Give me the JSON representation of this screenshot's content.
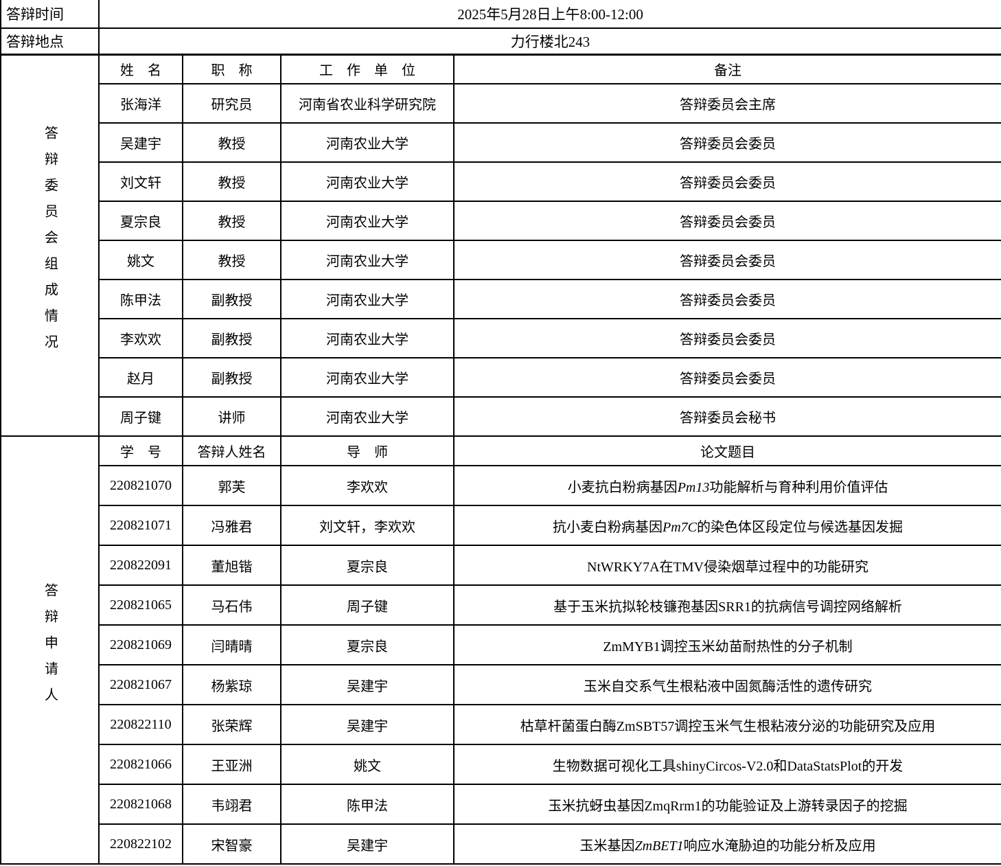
{
  "meta": {
    "time_label": "答辩时间",
    "time_value": "2025年5月28日上午8:00-12:00",
    "place_label": "答辩地点",
    "place_value": "力行楼北243"
  },
  "committee": {
    "section_label": "答辩委员会组成情况",
    "headers": [
      "姓　名",
      "职　称",
      "工　作　单　位",
      "备注"
    ],
    "rows": [
      {
        "name": "张海洋",
        "title": "研究员",
        "org": "河南省农业科学研究院",
        "note": "答辩委员会主席"
      },
      {
        "name": "吴建宇",
        "title": "教授",
        "org": "河南农业大学",
        "note": "答辩委员会委员"
      },
      {
        "name": "刘文轩",
        "title": "教授",
        "org": "河南农业大学",
        "note": "答辩委员会委员"
      },
      {
        "name": "夏宗良",
        "title": "教授",
        "org": "河南农业大学",
        "note": "答辩委员会委员"
      },
      {
        "name": "姚文",
        "title": "教授",
        "org": "河南农业大学",
        "note": "答辩委员会委员"
      },
      {
        "name": "陈甲法",
        "title": "副教授",
        "org": "河南农业大学",
        "note": "答辩委员会委员"
      },
      {
        "name": "李欢欢",
        "title": "副教授",
        "org": "河南农业大学",
        "note": "答辩委员会委员"
      },
      {
        "name": "赵月",
        "title": "副教授",
        "org": "河南农业大学",
        "note": "答辩委员会委员"
      },
      {
        "name": "周子键",
        "title": "讲师",
        "org": "河南农业大学",
        "note": "答辩委员会秘书"
      }
    ]
  },
  "applicants": {
    "section_label": "答辩申请人",
    "headers": [
      "学　号",
      "答辩人姓名",
      "导　师",
      "论文题目"
    ],
    "rows": [
      {
        "id": "220821070",
        "name": "郭芙",
        "advisor": "李欢欢",
        "title_parts": [
          {
            "text": "小麦抗白粉病基因"
          },
          {
            "text": "Pm13",
            "italic": true
          },
          {
            "text": "功能解析与育种利用价值评估"
          }
        ]
      },
      {
        "id": "220821071",
        "name": "冯雅君",
        "advisor": "刘文轩，李欢欢",
        "title_parts": [
          {
            "text": "抗小麦白粉病基因"
          },
          {
            "text": "Pm7C",
            "italic": true
          },
          {
            "text": "的染色体区段定位与候选基因发掘"
          }
        ]
      },
      {
        "id": "220822091",
        "name": "董旭锴",
        "advisor": "夏宗良",
        "title_parts": [
          {
            "text": "NtWRKY7A在TMV侵染烟草过程中的功能研究"
          }
        ]
      },
      {
        "id": "220821065",
        "name": "马石伟",
        "advisor": "周子键",
        "title_parts": [
          {
            "text": "基于玉米抗拟轮枝镰孢基因SRR1的抗病信号调控网络解析"
          }
        ]
      },
      {
        "id": "220821069",
        "name": "闫晴晴",
        "advisor": "夏宗良",
        "title_parts": [
          {
            "text": "ZmMYB1调控玉米幼苗耐热性的分子机制"
          }
        ]
      },
      {
        "id": "220821067",
        "name": "杨紫琼",
        "advisor": "吴建宇",
        "title_parts": [
          {
            "text": "玉米自交系气生根粘液中固氮酶活性的遗传研究"
          }
        ]
      },
      {
        "id": "220822110",
        "name": "张荣辉",
        "advisor": "吴建宇",
        "title_parts": [
          {
            "text": "枯草杆菌蛋白酶ZmSBT57调控玉米气生根粘液分泌的功能研究及应用"
          }
        ]
      },
      {
        "id": "220821066",
        "name": "王亚洲",
        "advisor": "姚文",
        "title_parts": [
          {
            "text": "生物数据可视化工具shinyCircos-V2.0和DataStatsPlot的开发"
          }
        ]
      },
      {
        "id": "220821068",
        "name": "韦翊君",
        "advisor": "陈甲法",
        "title_parts": [
          {
            "text": "玉米抗蚜虫基因ZmqRrm1的功能验证及上游转录因子的挖掘"
          }
        ]
      },
      {
        "id": "220822102",
        "name": "宋智豪",
        "advisor": "吴建宇",
        "title_parts": [
          {
            "text": "玉米基因"
          },
          {
            "text": "ZmBET1",
            "italic": true
          },
          {
            "text": "响应水淹胁迫的功能分析及应用"
          }
        ]
      }
    ]
  }
}
